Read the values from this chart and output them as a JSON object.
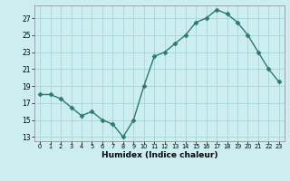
{
  "x": [
    0,
    1,
    2,
    3,
    4,
    5,
    6,
    7,
    8,
    9,
    10,
    11,
    12,
    13,
    14,
    15,
    16,
    17,
    18,
    19,
    20,
    21,
    22,
    23
  ],
  "y": [
    18.0,
    18.0,
    17.5,
    16.5,
    15.5,
    16.0,
    15.0,
    14.5,
    13.0,
    15.0,
    19.0,
    22.5,
    23.0,
    24.0,
    25.0,
    26.5,
    27.0,
    28.0,
    27.5,
    26.5,
    25.0,
    23.0,
    21.0,
    19.5
  ],
  "xlabel": "Humidex (Indice chaleur)",
  "xlim": [
    -0.5,
    23.5
  ],
  "ylim": [
    12.5,
    28.5
  ],
  "yticks": [
    13,
    15,
    17,
    19,
    21,
    23,
    25,
    27
  ],
  "xtick_labels": [
    "0",
    "1",
    "2",
    "3",
    "4",
    "5",
    "6",
    "7",
    "8",
    "9",
    "10",
    "11",
    "12",
    "13",
    "14",
    "15",
    "16",
    "17",
    "18",
    "19",
    "20",
    "21",
    "22",
    "23"
  ],
  "line_color": "#2d7a6e",
  "marker": "D",
  "marker_size": 2.5,
  "bg_color": "#cceef0",
  "grid_color": "#aad8da",
  "line_width": 1.0
}
